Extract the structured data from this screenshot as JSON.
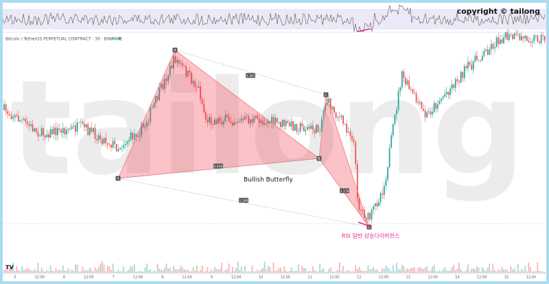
{
  "header": {
    "symbol": "Bitcoin / TetherUS PERPETUAL CONTRACT · 30 · BINANCE"
  },
  "watermark": "copyright © tailong",
  "background_text": "tailong",
  "pattern": {
    "name": "Bullish Butterfly",
    "points": [
      "X",
      "A",
      "B",
      "C",
      "D"
    ],
    "ratios": {
      "ac": "0.381",
      "xb": "0.628",
      "bd": "2.178",
      "xd": "1.289"
    }
  },
  "annotation": "RSI 일반 상승다이버전스",
  "time_axis": [
    "5",
    "12:00",
    "6",
    "12:00",
    "7",
    "12:00",
    "8",
    "12:00",
    "9",
    "12:00",
    "10",
    "12:00",
    "11",
    "12:00",
    "12",
    "12:00",
    "13",
    "12:00",
    "14",
    "12:00",
    "15",
    "12:00"
  ]
}
